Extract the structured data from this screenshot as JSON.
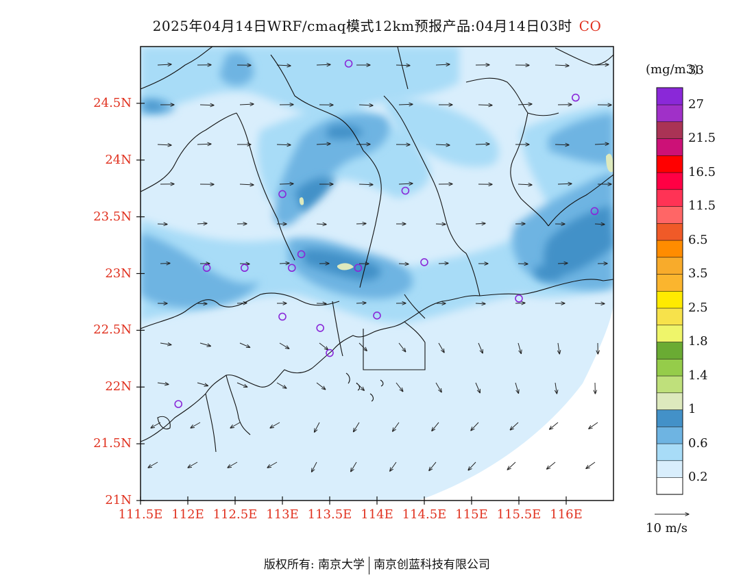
{
  "title": {
    "text": "2025年04月14日WRF/cmaq模式12km预报产品:04月14日03时",
    "species": "CO"
  },
  "map": {
    "lon_range": [
      111.5,
      116.5
    ],
    "lat_range": [
      21.0,
      25.0
    ],
    "lat_labels": [
      "24.5N",
      "24N",
      "23.5N",
      "23N",
      "22.5N",
      "22N",
      "21.5N",
      "21N"
    ],
    "lat_values": [
      24.5,
      24.0,
      23.5,
      23.0,
      22.5,
      22.0,
      21.5,
      21.0
    ],
    "lon_labels": [
      "111.5E",
      "112E",
      "112.5E",
      "113E",
      "113.5E",
      "114E",
      "114.5E",
      "115E",
      "115.5E",
      "116E"
    ],
    "lon_values": [
      111.5,
      112.0,
      112.5,
      113.0,
      113.5,
      114.0,
      114.5,
      115.0,
      115.5,
      116.0
    ],
    "stations": [
      [
        113.7,
        24.85
      ],
      [
        116.1,
        24.55
      ],
      [
        113.0,
        23.7
      ],
      [
        114.3,
        23.73
      ],
      [
        116.3,
        23.55
      ],
      [
        112.2,
        23.05
      ],
      [
        112.6,
        23.05
      ],
      [
        113.2,
        23.17
      ],
      [
        113.1,
        23.05
      ],
      [
        113.8,
        23.05
      ],
      [
        114.5,
        23.1
      ],
      [
        115.5,
        22.78
      ],
      [
        113.0,
        22.62
      ],
      [
        113.4,
        22.52
      ],
      [
        114.0,
        22.63
      ],
      [
        113.5,
        22.3
      ],
      [
        111.9,
        21.85
      ]
    ]
  },
  "colorbar": {
    "units": "(mg/m3)",
    "colors": [
      "#ffffff",
      "#d9eefc",
      "#a8dcf7",
      "#6eb4e2",
      "#4391c8",
      "#dde9bd",
      "#bfe07b",
      "#95cc4a",
      "#6aab33",
      "#eff56a",
      "#f7e24b",
      "#ffea00",
      "#fbb52e",
      "#f8ab2b",
      "#ff8c00",
      "#f05a28",
      "#ff6666",
      "#ff3355",
      "#ff0044",
      "#ff0000",
      "#cc1177",
      "#aa3355",
      "#a030c8",
      "#8a28d8"
    ],
    "labels": [
      "0.2",
      "0.6",
      "1",
      "1.4",
      "1.8",
      "2.5",
      "3.5",
      "6.5",
      "11.5",
      "16.5",
      "21.5",
      "27",
      "33"
    ]
  },
  "vector_legend": "10 m/s",
  "copyright": {
    "left": "版权所有: 南京大学",
    "right": "南京创蓝科技有限公司"
  }
}
